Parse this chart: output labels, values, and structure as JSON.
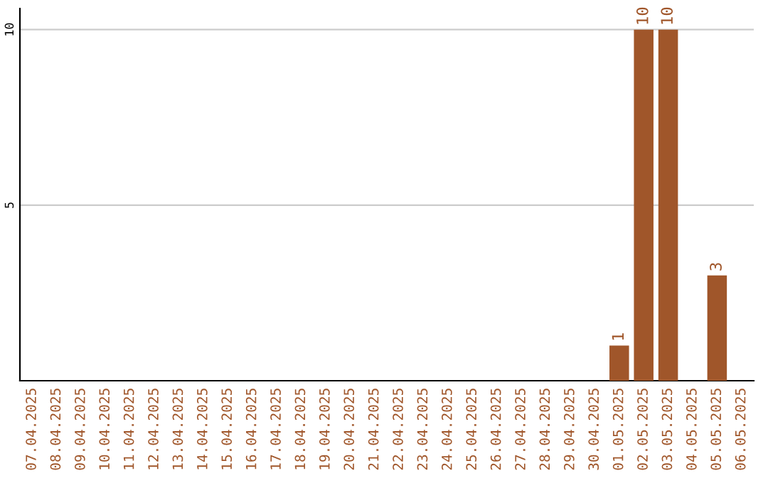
{
  "chart_data": {
    "type": "bar",
    "categories": [
      "07.04.2025",
      "08.04.2025",
      "09.04.2025",
      "10.04.2025",
      "11.04.2025",
      "12.04.2025",
      "13.04.2025",
      "14.04.2025",
      "15.04.2025",
      "16.04.2025",
      "17.04.2025",
      "18.04.2025",
      "19.04.2025",
      "20.04.2025",
      "21.04.2025",
      "22.04.2025",
      "23.04.2025",
      "24.04.2025",
      "25.04.2025",
      "26.04.2025",
      "27.04.2025",
      "28.04.2025",
      "29.04.2025",
      "30.04.2025",
      "01.05.2025",
      "02.05.2025",
      "03.05.2025",
      "04.05.2025",
      "05.05.2025",
      "06.05.2025"
    ],
    "values": [
      0,
      0,
      0,
      0,
      0,
      0,
      0,
      0,
      0,
      0,
      0,
      0,
      0,
      0,
      0,
      0,
      0,
      0,
      0,
      0,
      0,
      0,
      0,
      0,
      1,
      10,
      10,
      0,
      3,
      0
    ],
    "value_labels": [
      null,
      null,
      null,
      null,
      null,
      null,
      null,
      null,
      null,
      null,
      null,
      null,
      null,
      null,
      null,
      null,
      null,
      null,
      null,
      null,
      null,
      null,
      null,
      null,
      "1",
      "10",
      "10",
      null,
      "3",
      null
    ],
    "color": "#a0562a",
    "ylim": [
      0,
      10.6
    ],
    "yticks": [
      5,
      10
    ],
    "grid": "y",
    "legend": false
  }
}
